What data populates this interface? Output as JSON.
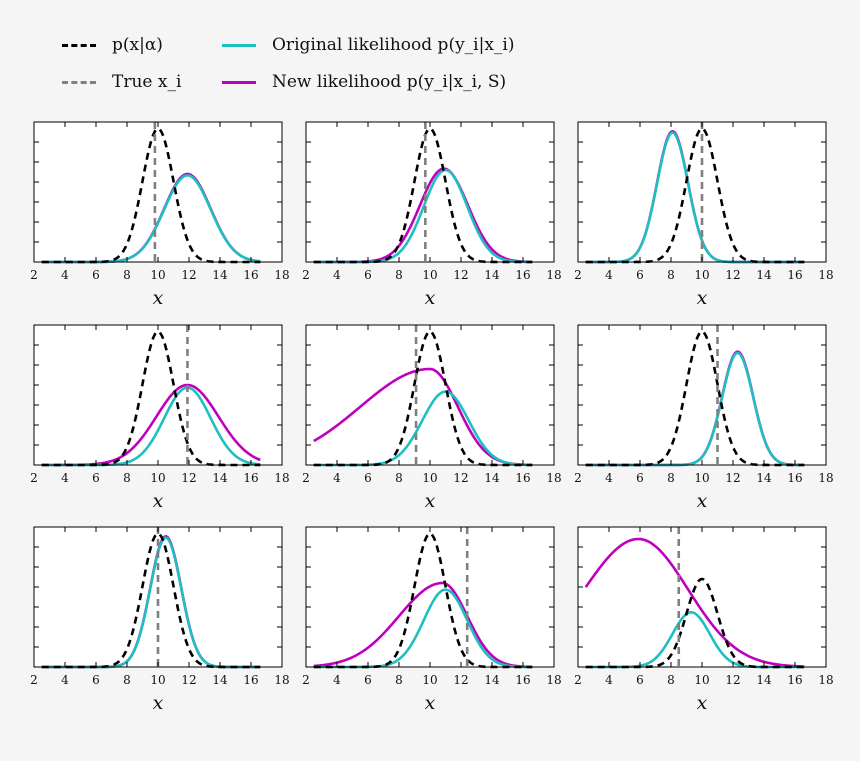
{
  "legend": [
    {
      "label": "p(x|α)",
      "color": "#000000",
      "style": "dashed"
    },
    {
      "label": "True x_i",
      "color": "#808080",
      "style": "dashed"
    },
    {
      "label": "Original likelihood p(y_i|x_i)",
      "color": "#1fbfbf",
      "style": "solid"
    },
    {
      "label": "New likelihood p(y_i|x_i, S)",
      "color": "#bf00bf",
      "style": "solid"
    }
  ],
  "colors": {
    "prior": "#000000",
    "true": "#808080",
    "original": "#1fbfbf",
    "new": "#bf00bf"
  },
  "chart_data": [
    {
      "type": "line",
      "xlabel": "x",
      "xlim": [
        2,
        18
      ],
      "xticks": [
        2,
        4,
        6,
        8,
        10,
        12,
        14,
        16,
        18
      ],
      "ylim": [
        0,
        1.05
      ],
      "true_x": 9.8,
      "series": [
        {
          "name": "p(x|α)",
          "kind": "gauss",
          "mean": 10,
          "sd": 1.0,
          "amp": 1.0
        },
        {
          "name": "Original likelihood p(y_i|x_i)",
          "kind": "gauss",
          "mean": 11.9,
          "sd": 1.5,
          "amp": 0.65
        },
        {
          "name": "New likelihood p(y_i|x_i, S)",
          "kind": "gauss",
          "mean": 11.9,
          "sd": 1.5,
          "amp": 0.66
        }
      ]
    },
    {
      "type": "line",
      "xlabel": "x",
      "xlim": [
        2,
        18
      ],
      "xticks": [
        2,
        4,
        6,
        8,
        10,
        12,
        14,
        16,
        18
      ],
      "ylim": [
        0,
        1.05
      ],
      "true_x": 9.7,
      "series": [
        {
          "name": "p(x|α)",
          "kind": "gauss",
          "mean": 10,
          "sd": 1.0,
          "amp": 1.0
        },
        {
          "name": "Original likelihood p(y_i|x_i)",
          "kind": "gauss",
          "mean": 11.0,
          "sd": 1.4,
          "amp": 0.69
        },
        {
          "name": "New likelihood p(y_i|x_i, S)",
          "kind": "gauss",
          "mean": 10.9,
          "sd": 1.55,
          "amp": 0.7
        }
      ]
    },
    {
      "type": "line",
      "xlabel": "x",
      "xlim": [
        2,
        18
      ],
      "xticks": [
        2,
        4,
        6,
        8,
        10,
        12,
        14,
        16,
        18
      ],
      "ylim": [
        0,
        1.05
      ],
      "true_x": 10.0,
      "series": [
        {
          "name": "p(x|α)",
          "kind": "gauss",
          "mean": 10,
          "sd": 1.0,
          "amp": 1.0
        },
        {
          "name": "Original likelihood p(y_i|x_i)",
          "kind": "gauss",
          "mean": 8.1,
          "sd": 1.0,
          "amp": 0.97
        },
        {
          "name": "New likelihood p(y_i|x_i, S)",
          "kind": "gauss",
          "mean": 8.1,
          "sd": 1.0,
          "amp": 0.98
        }
      ]
    },
    {
      "type": "line",
      "xlabel": "x",
      "xlim": [
        2,
        18
      ],
      "xticks": [
        2,
        4,
        6,
        8,
        10,
        12,
        14,
        16,
        18
      ],
      "ylim": [
        0,
        1.05
      ],
      "true_x": 11.9,
      "series": [
        {
          "name": "p(x|α)",
          "kind": "gauss",
          "mean": 10,
          "sd": 1.0,
          "amp": 1.0
        },
        {
          "name": "Original likelihood p(y_i|x_i)",
          "kind": "gauss",
          "mean": 11.9,
          "sd": 1.5,
          "amp": 0.58
        },
        {
          "name": "New likelihood p(y_i|x_i, S)",
          "kind": "gauss",
          "mean": 11.9,
          "sd": 2.0,
          "amp": 0.6
        }
      ]
    },
    {
      "type": "line",
      "xlabel": "x",
      "xlim": [
        2,
        18
      ],
      "xticks": [
        2,
        4,
        6,
        8,
        10,
        12,
        14,
        16,
        18
      ],
      "ylim": [
        0,
        1.05
      ],
      "true_x": 9.1,
      "series": [
        {
          "name": "p(x|α)",
          "kind": "gauss",
          "mean": 10,
          "sd": 1.0,
          "amp": 1.0
        },
        {
          "name": "Original likelihood p(y_i|x_i)",
          "kind": "gauss",
          "mean": 11.0,
          "sd": 1.5,
          "amp": 0.55
        },
        {
          "name": "New likelihood p(y_i|x_i, S)",
          "kind": "skew",
          "mean": 10.0,
          "sdLeft": 4.5,
          "sdRight": 1.8,
          "amp": 0.72
        }
      ]
    },
    {
      "type": "line",
      "xlabel": "x",
      "xlim": [
        2,
        18
      ],
      "xticks": [
        2,
        4,
        6,
        8,
        10,
        12,
        14,
        16,
        18
      ],
      "ylim": [
        0,
        1.05
      ],
      "true_x": 11.0,
      "series": [
        {
          "name": "p(x|α)",
          "kind": "gauss",
          "mean": 10,
          "sd": 1.0,
          "amp": 1.0
        },
        {
          "name": "Original likelihood p(y_i|x_i)",
          "kind": "gauss",
          "mean": 12.3,
          "sd": 1.0,
          "amp": 0.84
        },
        {
          "name": "New likelihood p(y_i|x_i, S)",
          "kind": "gauss",
          "mean": 12.3,
          "sd": 1.0,
          "amp": 0.85
        }
      ]
    },
    {
      "type": "line",
      "xlabel": "x",
      "xlim": [
        2,
        18
      ],
      "xticks": [
        2,
        4,
        6,
        8,
        10,
        12,
        14,
        16,
        18
      ],
      "ylim": [
        0,
        1.05
      ],
      "true_x": 10.0,
      "series": [
        {
          "name": "p(x|α)",
          "kind": "gauss",
          "mean": 10,
          "sd": 1.0,
          "amp": 1.0
        },
        {
          "name": "Original likelihood p(y_i|x_i)",
          "kind": "gauss",
          "mean": 10.5,
          "sd": 1.0,
          "amp": 0.97
        },
        {
          "name": "New likelihood p(y_i|x_i, S)",
          "kind": "gauss",
          "mean": 10.5,
          "sd": 1.0,
          "amp": 0.98
        }
      ]
    },
    {
      "type": "line",
      "xlabel": "x",
      "xlim": [
        2,
        18
      ],
      "xticks": [
        2,
        4,
        6,
        8,
        10,
        12,
        14,
        16,
        18
      ],
      "ylim": [
        0,
        1.05
      ],
      "true_x": 12.4,
      "series": [
        {
          "name": "p(x|α)",
          "kind": "gauss",
          "mean": 10,
          "sd": 1.0,
          "amp": 1.0
        },
        {
          "name": "Original likelihood p(y_i|x_i)",
          "kind": "gauss",
          "mean": 11.0,
          "sd": 1.4,
          "amp": 0.58
        },
        {
          "name": "New likelihood p(y_i|x_i, S)",
          "kind": "skew",
          "mean": 10.8,
          "sdLeft": 2.8,
          "sdRight": 1.6,
          "amp": 0.63
        }
      ]
    },
    {
      "type": "line",
      "xlabel": "x",
      "xlim": [
        2,
        18
      ],
      "xticks": [
        2,
        4,
        6,
        8,
        10,
        12,
        14,
        16,
        18
      ],
      "ylim": [
        0,
        1.05
      ],
      "true_x": 8.5,
      "series": [
        {
          "name": "p(x|α)",
          "kind": "gauss",
          "mean": 10,
          "sd": 1.0,
          "amp": 0.66
        },
        {
          "name": "Original likelihood p(y_i|x_i)",
          "kind": "gauss",
          "mean": 9.3,
          "sd": 1.2,
          "amp": 0.41
        },
        {
          "name": "New likelihood p(y_i|x_i, S)",
          "kind": "skew",
          "mean": 5.9,
          "sdLeft": 3.5,
          "sdRight": 3.2,
          "amp": 0.96
        }
      ]
    }
  ]
}
